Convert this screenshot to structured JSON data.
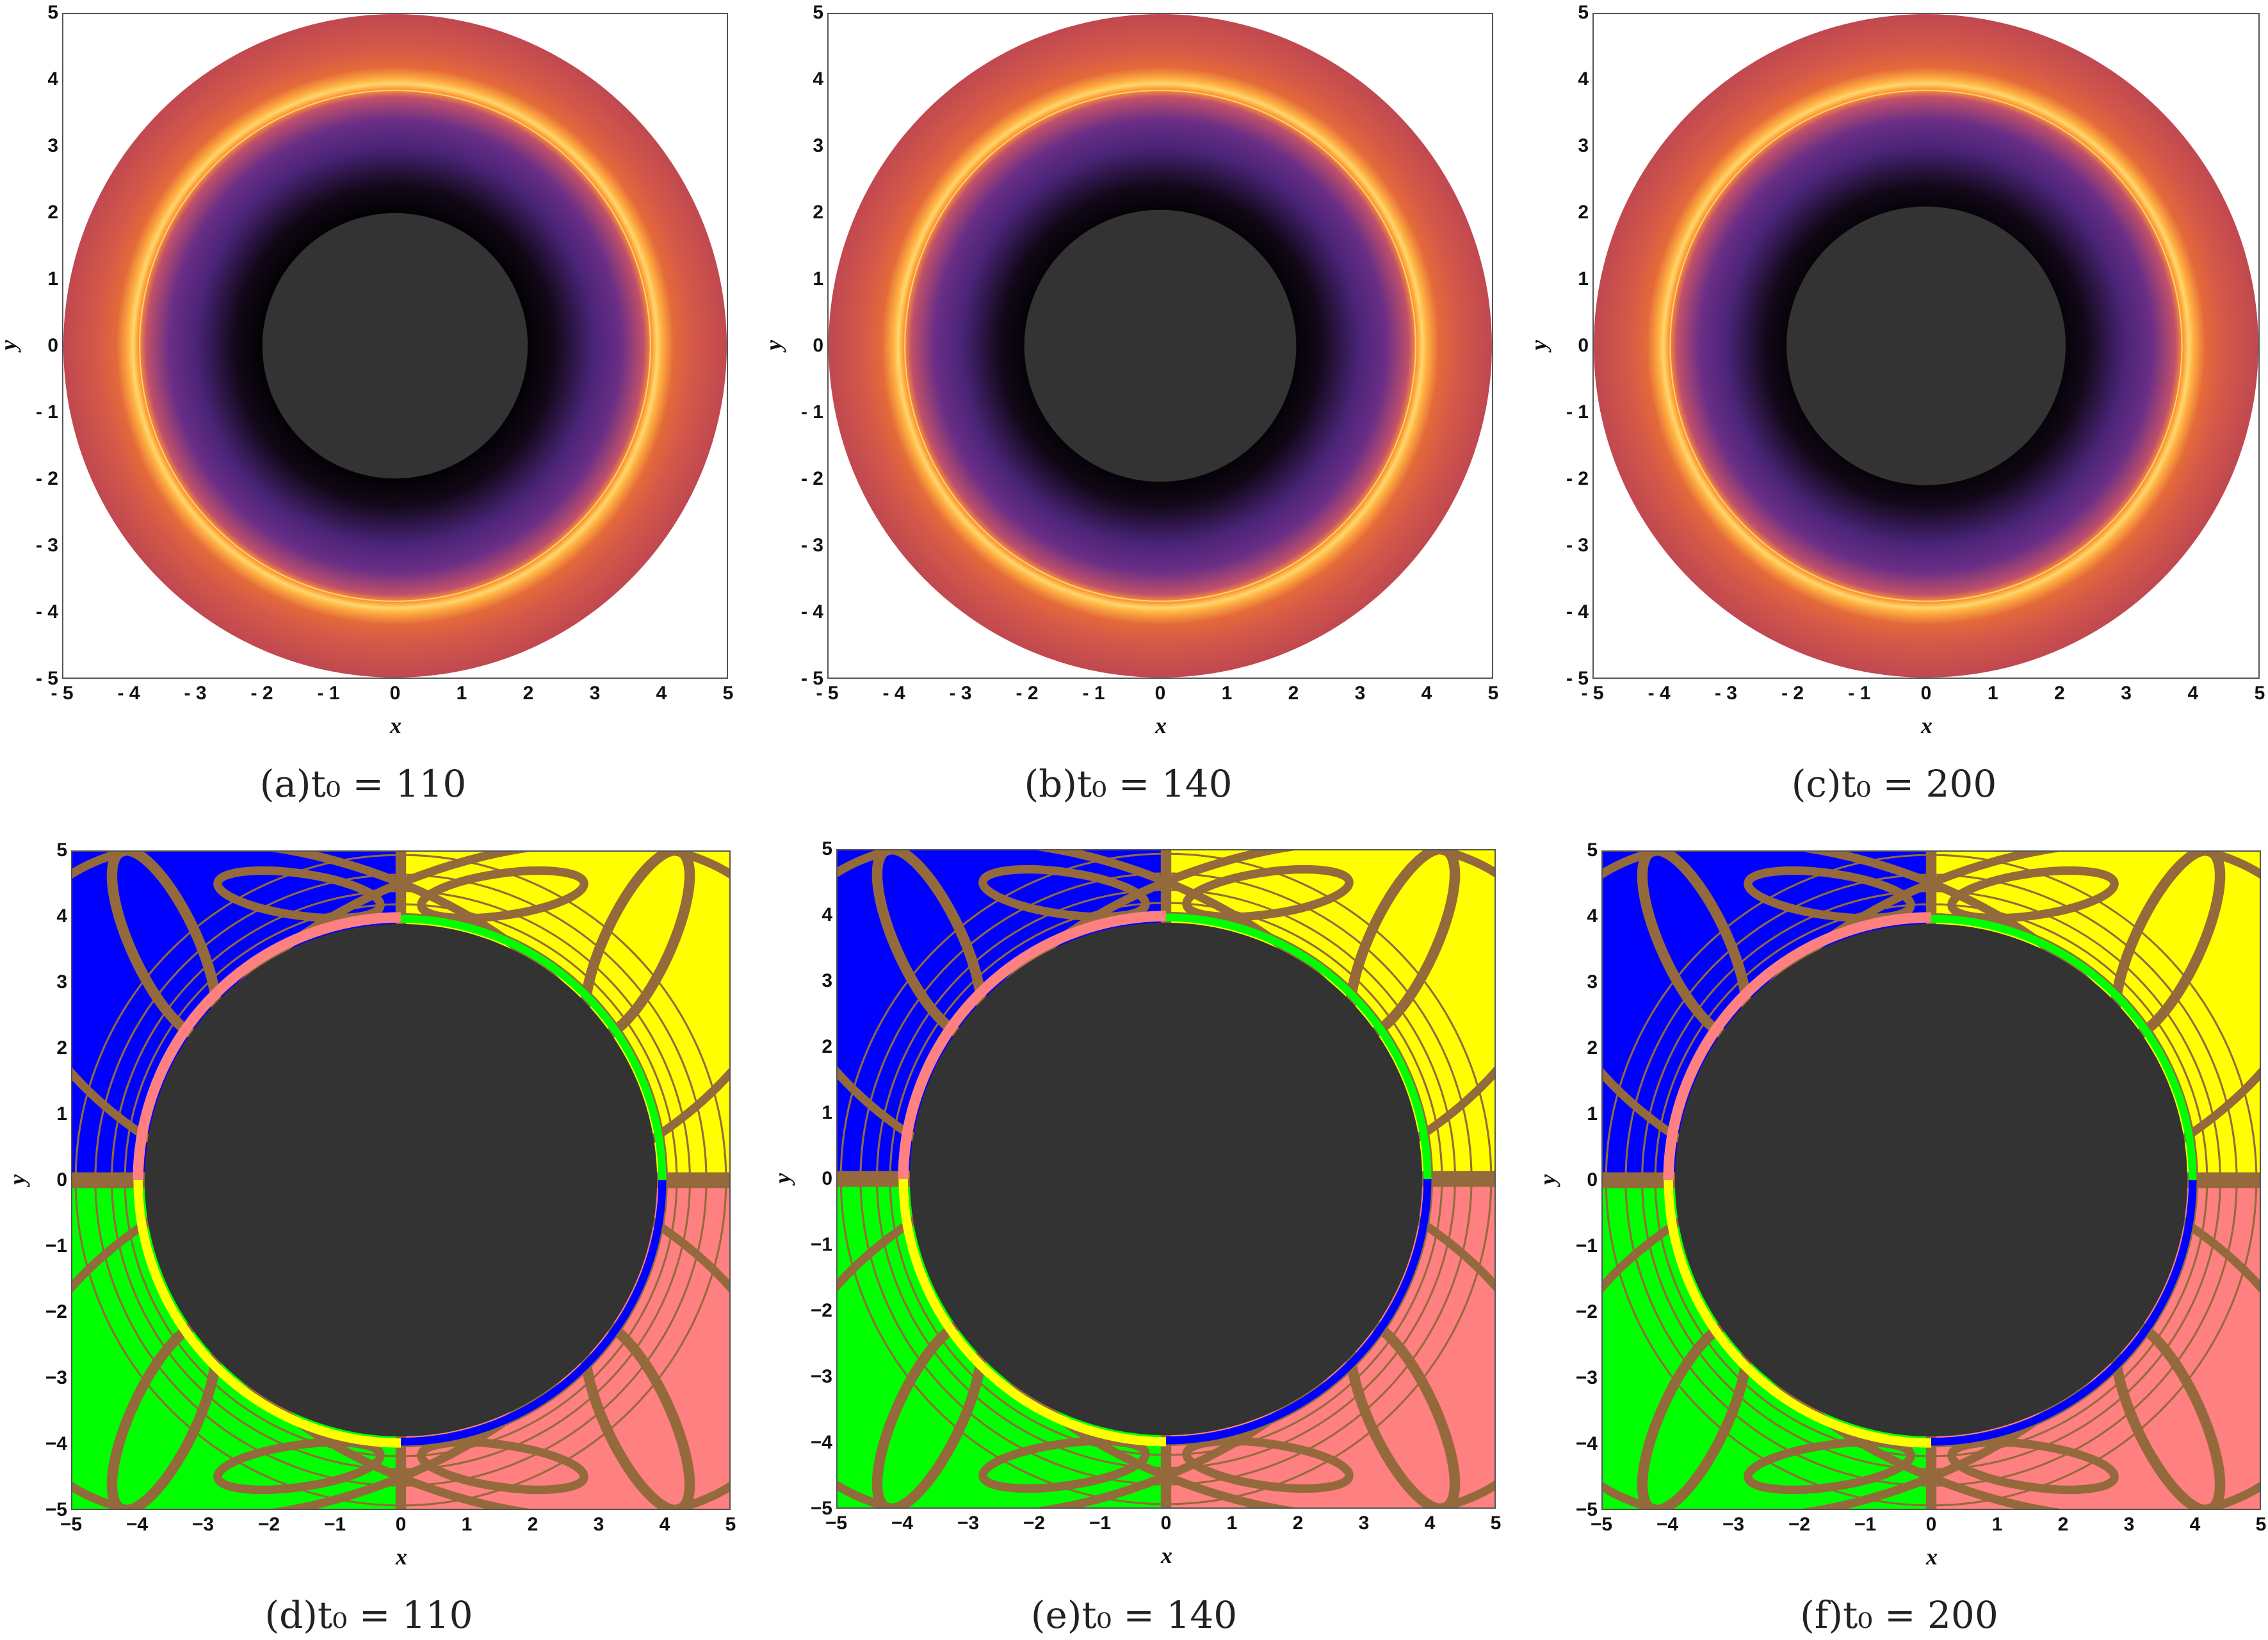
{
  "chart_data": [
    {
      "type": "heatmap",
      "caption": "(a)t₀ = 110",
      "xlabel": "x",
      "ylabel": "y",
      "xlim": [
        -5,
        5
      ],
      "ylim": [
        -5,
        5
      ],
      "xticks": [
        "- 5",
        "- 4",
        "- 3",
        "- 2",
        "- 1",
        "0",
        "1",
        "2",
        "3",
        "4",
        "5"
      ],
      "yticks": [
        "5",
        "4",
        "3",
        "2",
        "1",
        "0",
        "- 1",
        "- 2",
        "- 3",
        "- 4",
        "- 5"
      ],
      "kind": "intensity",
      "shadow_radius": 2.0,
      "ring_radius": 3.95,
      "colormap": [
        "#333333",
        "#000000",
        "#5b2a8c",
        "#ffb040",
        "#c04850"
      ]
    },
    {
      "type": "heatmap",
      "caption": "(b)t₀ = 140",
      "xlabel": "x",
      "ylabel": "y",
      "xlim": [
        -5,
        5
      ],
      "ylim": [
        -5,
        5
      ],
      "xticks": [
        "- 5",
        "- 4",
        "- 3",
        "- 2",
        "- 1",
        "0",
        "1",
        "2",
        "3",
        "4",
        "5"
      ],
      "yticks": [
        "5",
        "4",
        "3",
        "2",
        "1",
        "0",
        "- 1",
        "- 2",
        "- 3",
        "- 4",
        "- 5"
      ],
      "kind": "intensity",
      "shadow_radius": 2.05,
      "ring_radius": 3.95,
      "colormap": [
        "#333333",
        "#000000",
        "#5b2a8c",
        "#ffb040",
        "#c04850"
      ]
    },
    {
      "type": "heatmap",
      "caption": "(c)t₀ = 200",
      "xlabel": "x",
      "ylabel": "y",
      "xlim": [
        -5,
        5
      ],
      "ylim": [
        -5,
        5
      ],
      "xticks": [
        "- 5",
        "- 4",
        "- 3",
        "- 2",
        "- 1",
        "0",
        "1",
        "2",
        "3",
        "4",
        "5"
      ],
      "yticks": [
        "5",
        "4",
        "3",
        "2",
        "1",
        "0",
        "- 1",
        "- 2",
        "- 3",
        "- 4",
        "- 5"
      ],
      "kind": "intensity",
      "shadow_radius": 2.1,
      "ring_radius": 3.95,
      "colormap": [
        "#333333",
        "#000000",
        "#5b2a8c",
        "#ffb040",
        "#c04850"
      ]
    },
    {
      "type": "heatmap",
      "caption": "(d)t₀ = 110",
      "xlabel": "x",
      "ylabel": "y",
      "xlim": [
        -5,
        5
      ],
      "ylim": [
        -5,
        5
      ],
      "xticks": [
        "−5",
        "−4",
        "−3",
        "−2",
        "−1",
        "0",
        "1",
        "2",
        "3",
        "4",
        "5"
      ],
      "yticks": [
        "5",
        "4",
        "3",
        "2",
        "1",
        "0",
        "−1",
        "−2",
        "−3",
        "−4",
        "−5"
      ],
      "kind": "quadrant",
      "shadow_radius": 3.9,
      "quadrant_colors": {
        "top_left": "#0000ff",
        "top_right": "#ffff00",
        "bottom_left": "#00ff00",
        "bottom_right": "#ff8080",
        "boundary": "#946a3c",
        "shadow": "#333333"
      }
    },
    {
      "type": "heatmap",
      "caption": "(e)t₀ = 140",
      "xlabel": "x",
      "ylabel": "y",
      "xlim": [
        -5,
        5
      ],
      "ylim": [
        -5,
        5
      ],
      "xticks": [
        "−5",
        "−4",
        "−3",
        "−2",
        "−1",
        "0",
        "1",
        "2",
        "3",
        "4",
        "5"
      ],
      "yticks": [
        "5",
        "4",
        "3",
        "2",
        "1",
        "0",
        "−1",
        "−2",
        "−3",
        "−4",
        "−5"
      ],
      "kind": "quadrant",
      "shadow_radius": 3.9,
      "quadrant_colors": {
        "top_left": "#0000ff",
        "top_right": "#ffff00",
        "bottom_left": "#00ff00",
        "bottom_right": "#ff8080",
        "boundary": "#946a3c",
        "shadow": "#333333"
      }
    },
    {
      "type": "heatmap",
      "caption": "(f)t₀ = 200",
      "xlabel": "x",
      "ylabel": "y",
      "xlim": [
        -5,
        5
      ],
      "ylim": [
        -5,
        5
      ],
      "xticks": [
        "−5",
        "−4",
        "−3",
        "−2",
        "−1",
        "0",
        "1",
        "2",
        "3",
        "4",
        "5"
      ],
      "yticks": [
        "5",
        "4",
        "3",
        "2",
        "1",
        "0",
        "−1",
        "−2",
        "−3",
        "−4",
        "−5"
      ],
      "kind": "quadrant",
      "shadow_radius": 3.9,
      "quadrant_colors": {
        "top_left": "#0000ff",
        "top_right": "#ffff00",
        "bottom_left": "#00ff00",
        "bottom_right": "#ff8080",
        "boundary": "#946a3c",
        "shadow": "#333333"
      }
    }
  ]
}
